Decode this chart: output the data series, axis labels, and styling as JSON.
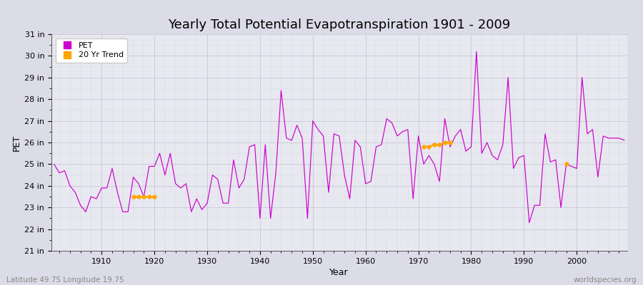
{
  "title": "Yearly Total Potential Evapotranspiration 1901 - 2009",
  "xlabel": "Year",
  "ylabel": "PET",
  "footer_left": "Latitude 49.75 Longitude 19.75",
  "footer_right": "worldspecies.org",
  "pet_color": "#CC00CC",
  "trend_color": "#FFA500",
  "bg_color": "#DCDCE8",
  "plot_bg_color": "#E8E8F0",
  "grid_major_color": "#C8C8D8",
  "grid_minor_color": "#D8D8E8",
  "years": [
    1901,
    1902,
    1903,
    1904,
    1905,
    1906,
    1907,
    1908,
    1909,
    1910,
    1911,
    1912,
    1913,
    1914,
    1915,
    1916,
    1917,
    1918,
    1919,
    1920,
    1921,
    1922,
    1923,
    1924,
    1925,
    1926,
    1927,
    1928,
    1929,
    1930,
    1931,
    1932,
    1933,
    1934,
    1935,
    1936,
    1937,
    1938,
    1939,
    1940,
    1941,
    1942,
    1943,
    1944,
    1945,
    1946,
    1947,
    1948,
    1949,
    1950,
    1951,
    1952,
    1953,
    1954,
    1955,
    1956,
    1957,
    1958,
    1959,
    1960,
    1961,
    1962,
    1963,
    1964,
    1965,
    1966,
    1967,
    1968,
    1969,
    1970,
    1971,
    1972,
    1973,
    1974,
    1975,
    1976,
    1977,
    1978,
    1979,
    1980,
    1981,
    1982,
    1983,
    1984,
    1985,
    1986,
    1987,
    1988,
    1989,
    1990,
    1991,
    1992,
    1993,
    1994,
    1995,
    1996,
    1997,
    1998,
    1999,
    2000,
    2001,
    2002,
    2003,
    2004,
    2005,
    2006,
    2007,
    2008,
    2009
  ],
  "pet_values": [
    25.0,
    24.6,
    24.7,
    24.0,
    23.7,
    23.1,
    22.8,
    23.5,
    23.4,
    23.9,
    23.9,
    24.8,
    23.7,
    22.8,
    22.8,
    24.4,
    24.1,
    23.5,
    24.9,
    24.9,
    25.5,
    24.5,
    25.5,
    24.1,
    23.9,
    24.1,
    22.8,
    23.4,
    22.9,
    23.2,
    24.5,
    24.3,
    23.2,
    23.2,
    25.2,
    23.9,
    24.3,
    25.8,
    25.9,
    22.5,
    25.9,
    22.5,
    24.6,
    28.4,
    26.2,
    26.1,
    26.8,
    26.2,
    22.5,
    27.0,
    26.6,
    26.3,
    23.7,
    26.4,
    26.3,
    24.5,
    23.4,
    26.1,
    25.8,
    24.1,
    24.2,
    25.8,
    25.9,
    27.1,
    26.9,
    26.3,
    26.5,
    26.6,
    23.4,
    26.3,
    25.0,
    25.4,
    25.0,
    24.2,
    27.1,
    25.8,
    26.3,
    26.6,
    25.6,
    25.8,
    30.2,
    25.5,
    26.0,
    25.4,
    25.2,
    25.9,
    29.0,
    24.8,
    25.3,
    25.4,
    22.3,
    23.1,
    23.1,
    26.4,
    25.1,
    25.2,
    23.0,
    25.0,
    24.9,
    24.8,
    29.0,
    26.4,
    26.6,
    24.4,
    26.3,
    26.2,
    26.2,
    26.2,
    26.1
  ],
  "trend_segments": [
    {
      "years": [
        1916,
        1917,
        1918,
        1919,
        1920
      ],
      "values": [
        23.5,
        23.5,
        23.5,
        23.5,
        23.5
      ]
    },
    {
      "years": [
        1971,
        1972,
        1973,
        1974,
        1975,
        1976
      ],
      "values": [
        25.8,
        25.8,
        25.9,
        25.9,
        26.0,
        26.0
      ]
    },
    {
      "years": [
        1998
      ],
      "values": [
        25.0
      ]
    }
  ],
  "ylim": [
    21,
    31
  ],
  "ytick_values": [
    21,
    22,
    23,
    24,
    25,
    26,
    27,
    28,
    29,
    30,
    31
  ],
  "ytick_labels": [
    "21 in",
    "22 in",
    "23 in",
    "24 in",
    "25 in",
    "26 in",
    "27 in",
    "28 in",
    "29 in",
    "30 in",
    "31 in"
  ],
  "xtick_values": [
    1910,
    1920,
    1930,
    1940,
    1950,
    1960,
    1970,
    1980,
    1990,
    2000
  ],
  "xtick_labels": [
    "1910",
    "1920",
    "1930",
    "1940",
    "1950",
    "1960",
    "1970",
    "1980",
    "1990",
    "2000"
  ],
  "title_fontsize": 13,
  "axis_label_fontsize": 9,
  "tick_fontsize": 8
}
